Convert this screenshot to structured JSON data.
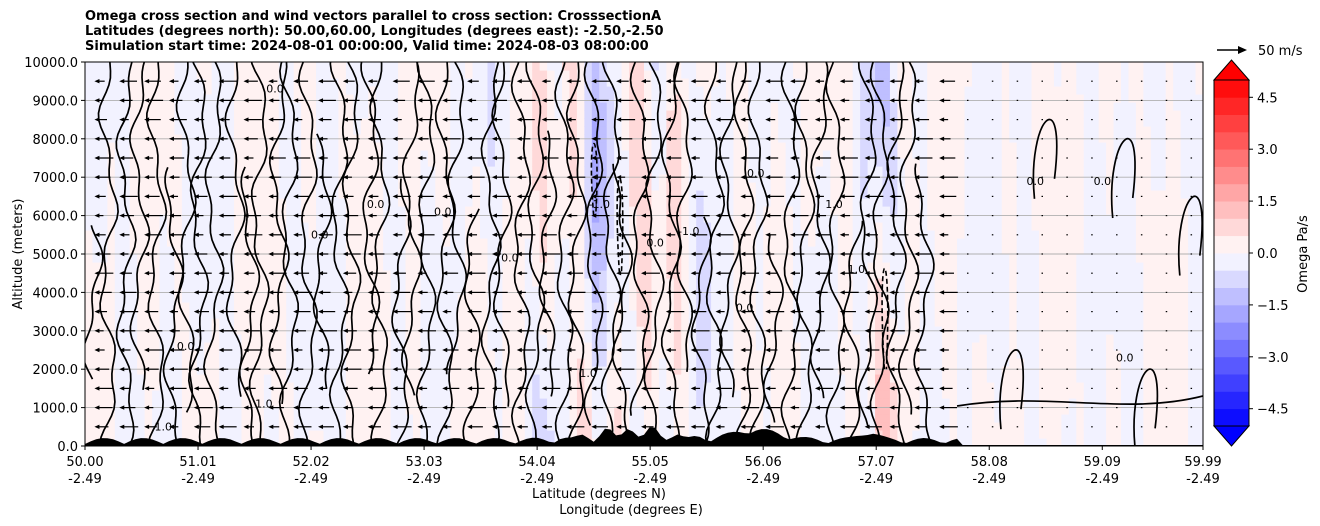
{
  "chart_data": {
    "type": "contour-section",
    "title_lines": [
      "Omega cross section and wind vectors parallel to cross section: CrosssectionA",
      "Latitudes (degrees north): 50.00,60.00, Longitudes (degrees east): -2.50,-2.50",
      "Simulation start time: 2024-08-01 00:00:00, Valid time: 2024-08-03 08:00:00"
    ],
    "ylabel": "Altitude (meters)",
    "xlabel_lat": "Latitude (degrees N)",
    "xlabel_lon": "Longitude (degrees E)",
    "ylim": [
      0,
      10000
    ],
    "y_ticks": [
      "0.0",
      "1000.0",
      "2000.0",
      "3000.0",
      "4000.0",
      "5000.0",
      "6000.0",
      "7000.0",
      "8000.0",
      "9000.0",
      "10000.0"
    ],
    "x_ticks_lat": [
      "50.00",
      "51.01",
      "52.02",
      "53.03",
      "54.04",
      "55.05",
      "56.06",
      "57.07",
      "58.08",
      "59.09",
      "59.99"
    ],
    "x_ticks_lon": [
      "-2.49",
      "-2.49",
      "-2.49",
      "-2.49",
      "-2.49",
      "-2.49",
      "-2.49",
      "-2.49",
      "-2.49",
      "-2.49",
      "-2.49"
    ],
    "grid": "horizontal",
    "colorbar": {
      "label": "Omega Pa/s",
      "range": [
        -5,
        5
      ],
      "ticks": [
        "4.5",
        "3.0",
        "1.5",
        "0.0",
        "−1.5",
        "−3.0",
        "−4.5"
      ],
      "tick_values": [
        4.5,
        3.0,
        1.5,
        0.0,
        -1.5,
        -3.0,
        -4.5
      ],
      "extend": "both",
      "cmap": "bwr"
    },
    "quiver_key": {
      "label": "50 m/s",
      "speed": 50
    },
    "contour_labels": [
      "0.0",
      "1.0",
      "-1.0"
    ],
    "colors": {
      "positive": "#ff0000",
      "negative": "#0000ff",
      "terrain": "#000000"
    }
  }
}
